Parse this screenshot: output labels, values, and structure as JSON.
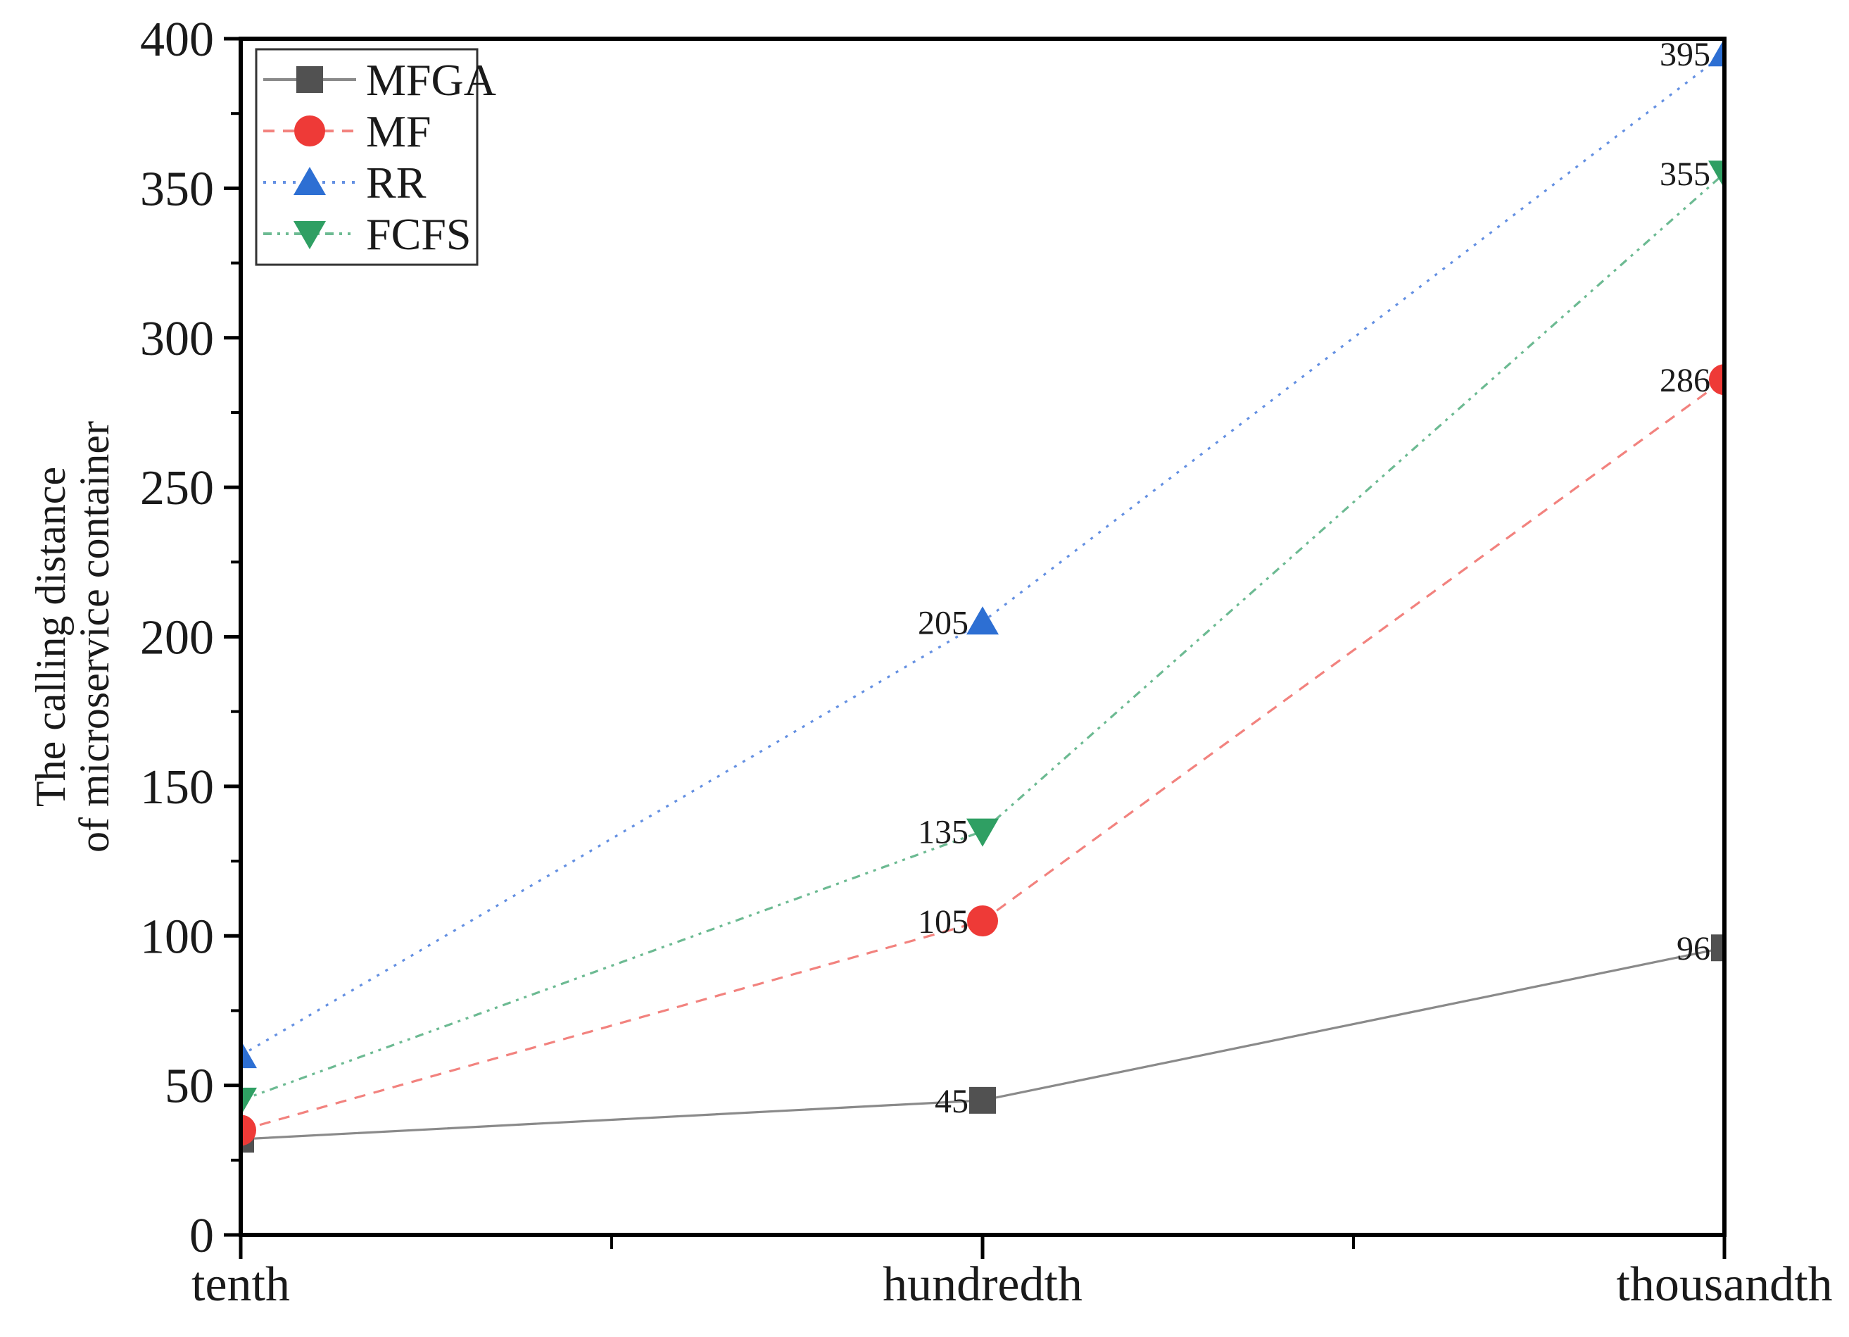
{
  "figure": {
    "background": "#ffffff"
  },
  "chart_data": {
    "type": "line",
    "title": "",
    "xlabel": "",
    "ylabel": "The calling distance of microservice container",
    "ylabel_lines": [
      "The calling distance",
      "of microservice container"
    ],
    "categories": [
      "tenth",
      "hundredth",
      "thousandth"
    ],
    "series": [
      {
        "name": "MFGA",
        "marker": "square",
        "marker_color": "#515151",
        "line_color": "#8a8a8a",
        "line_style": "solid",
        "values": [
          32,
          45,
          96
        ],
        "point_labels": [
          "",
          "45",
          "96"
        ]
      },
      {
        "name": "MF",
        "marker": "circle",
        "marker_color": "#ee3a37",
        "line_color": "#f2827e",
        "line_style": "dashed",
        "values": [
          35,
          105,
          286
        ],
        "point_labels": [
          "",
          "105",
          "286"
        ]
      },
      {
        "name": "RR",
        "marker": "triangle-up",
        "marker_color": "#2d6fd3",
        "line_color": "#6490e2",
        "line_style": "dotted",
        "values": [
          60,
          205,
          395
        ],
        "point_labels": [
          "",
          "205",
          "395"
        ]
      },
      {
        "name": "FCFS",
        "marker": "triangle-down",
        "marker_color": "#2f9f63",
        "line_color": "#6cba92",
        "line_style": "dash-dot-dot",
        "values": [
          45,
          135,
          355
        ],
        "point_labels": [
          "",
          "135",
          "355"
        ]
      }
    ],
    "y_axis": {
      "min": 0,
      "max": 400,
      "major_step": 50,
      "minor_step": 25,
      "tick_labels": [
        "0",
        "50",
        "100",
        "150",
        "200",
        "250",
        "300",
        "350",
        "400"
      ]
    },
    "x_axis": {
      "tick_labels": [
        "tenth",
        "hundredth",
        "thousandth"
      ]
    },
    "legend": {
      "position": "top-left",
      "entries": [
        "MFGA",
        "MF",
        "RR",
        "FCFS"
      ]
    },
    "grid": false,
    "axis_color": "#000000",
    "text_color": "#1a1a1a"
  }
}
